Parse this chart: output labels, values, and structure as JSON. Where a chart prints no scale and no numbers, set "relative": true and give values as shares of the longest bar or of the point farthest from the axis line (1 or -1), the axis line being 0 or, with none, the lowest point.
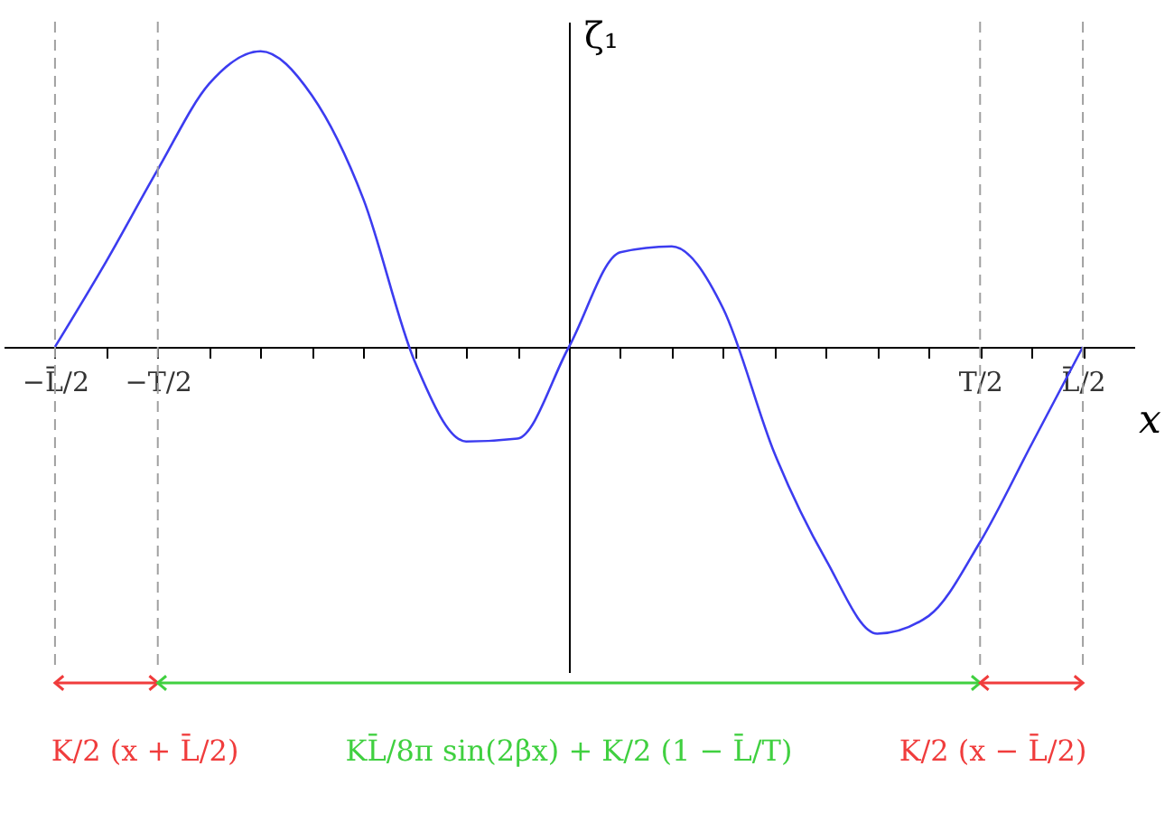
{
  "chart_data": {
    "type": "line",
    "relative": true,
    "xlabel": "x",
    "ylabel": "ζ₁",
    "categories": [
      "−L̄/2",
      null,
      "−T/2",
      null,
      null,
      null,
      null,
      null,
      null,
      null,
      null,
      null,
      null,
      null,
      null,
      null,
      null,
      null,
      "T/2",
      null,
      "L̄/2"
    ],
    "series": [
      {
        "color": "#3c3cf0",
        "values": [
          0,
          0.29,
          0.6,
          0.89,
          1,
          0.85,
          0.5,
          -0.05,
          -0.32,
          -0.31,
          0,
          0.32,
          0.34,
          0.13,
          -0.36,
          -0.72,
          -0.97,
          -0.91,
          -0.66,
          -0.33,
          0
        ]
      }
    ],
    "ref_lines": [
      {
        "axis": "x",
        "value": "−L̄/2",
        "color": "#a0a0a0",
        "line_style": "dashed"
      },
      {
        "axis": "x",
        "value": "−T/2",
        "color": "#a0a0a0",
        "line_style": "dashed"
      },
      {
        "axis": "x",
        "value": "T/2",
        "color": "#a0a0a0",
        "line_style": "dashed"
      },
      {
        "axis": "x",
        "value": "L̄/2",
        "color": "#a0a0a0",
        "line_style": "dashed"
      }
    ],
    "annotations": [
      "K/2 (x + L̄/2)",
      "KL̄/8π sin(2βx) + K/2 (1 − L̄/T)",
      "K/2 (x − L̄/2)"
    ],
    "colors": [
      "#f03c3c",
      "#40d040",
      "#f03c3c"
    ]
  }
}
